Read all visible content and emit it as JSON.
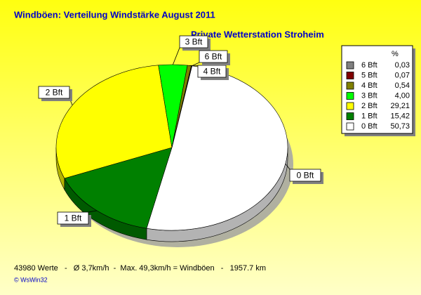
{
  "chart_data": {
    "type": "pie",
    "title": "Windböen: Verteilung Windstärke  August 2011",
    "subtitle": "Private Wetterstation Stroheim",
    "legend_title": "%",
    "categories": [
      "6 Bft",
      "5 Bft",
      "4 Bft",
      "3 Bft",
      "2 Bft",
      "1 Bft",
      "0 Bft"
    ],
    "values": [
      0.03,
      0.07,
      0.54,
      4.0,
      29.21,
      15.42,
      50.73
    ],
    "value_labels": [
      "0,03",
      "0,07",
      "0,54",
      "4,00",
      "29,21",
      "15,42",
      "50,73"
    ],
    "colors": [
      "#808080",
      "#800000",
      "#808000",
      "#00ff00",
      "#ffff00",
      "#008000",
      "#ffffff"
    ],
    "legend": "top-right",
    "footer": "43980 Werte   -   Ø 3,7km/h  -  Max. 49,3km/h = Windböen   -   1957.7 km",
    "credit": "© WsWin32"
  }
}
